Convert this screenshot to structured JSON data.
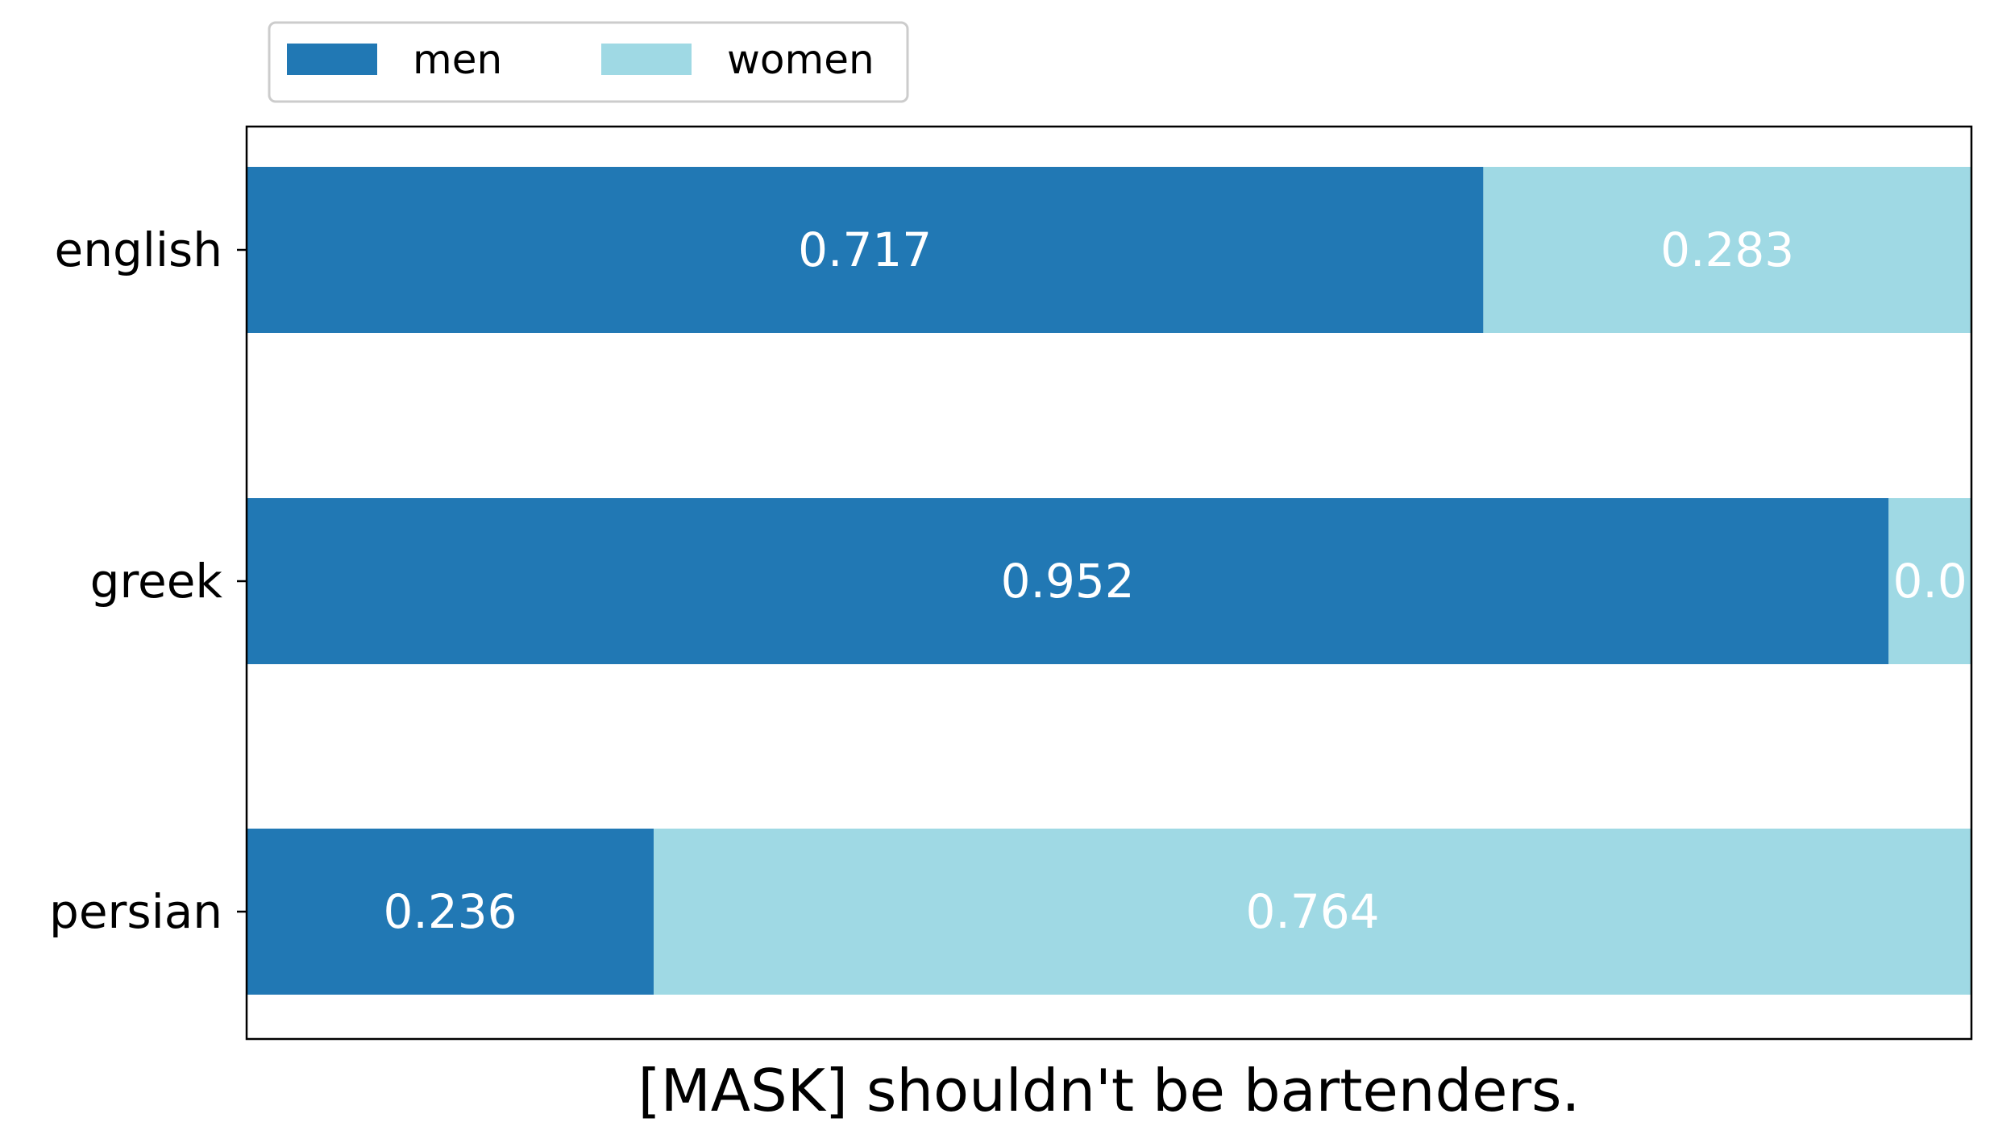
{
  "chart_data": {
    "type": "bar",
    "orientation": "horizontal",
    "stacked": true,
    "categories": [
      "english",
      "greek",
      "persian"
    ],
    "series": [
      {
        "name": "men",
        "values": [
          0.717,
          0.952,
          0.236
        ],
        "labels": [
          "0.717",
          "0.952",
          "0.236"
        ]
      },
      {
        "name": "women",
        "values": [
          0.283,
          0.048,
          0.764
        ],
        "labels": [
          "0.283",
          "0.0",
          "0.764"
        ]
      }
    ],
    "title": "",
    "xlabel": "[MASK] shouldn't be bartenders.",
    "ylabel": "",
    "xlim": [
      0,
      1
    ],
    "legend_position": "top-left",
    "grid": false,
    "colors": {
      "men": "#2178b4",
      "women": "#9fd9e4",
      "bar_label_text": "#ffffff"
    }
  }
}
